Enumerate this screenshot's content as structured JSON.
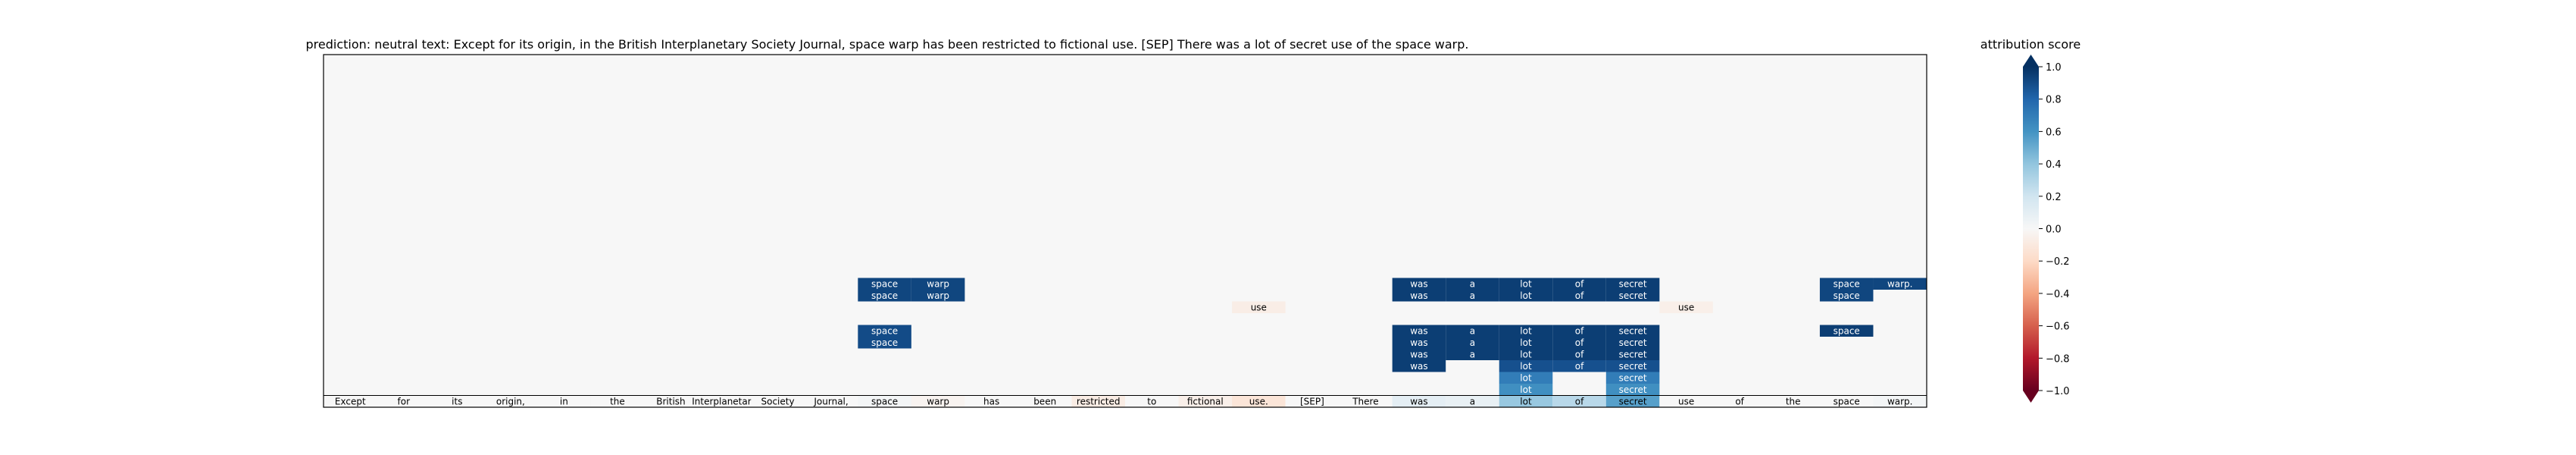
{
  "chart_data": {
    "type": "heatmap",
    "title": "prediction:  neutral     text:  Except for its origin, in the British Interplanetary Society Journal, space warp has been restricted to fictional use. [SEP] There was a lot of secret use of the space warp.",
    "tokens": [
      "Except",
      "for",
      "its",
      "origin,",
      "in",
      "the",
      "British",
      "Interplanetary",
      "Society",
      "Journal,",
      "space",
      "warp",
      "has",
      "been",
      "restricted",
      "to",
      "fictional",
      "use.",
      "[SEP]",
      "There",
      "was",
      "a",
      "lot",
      "of",
      "secret",
      "use",
      "of",
      "the",
      "space",
      "warp."
    ],
    "token_scores": [
      0.0,
      0.0,
      0.0,
      0.0,
      0.0,
      0.0,
      0.0,
      0.0,
      0.0,
      0.0,
      0.02,
      -0.03,
      0.0,
      0.0,
      -0.08,
      0.0,
      -0.06,
      -0.13,
      0.0,
      0.0,
      0.1,
      0.08,
      0.38,
      0.28,
      0.55,
      0.0,
      0.0,
      0.0,
      0.0,
      0.02
    ],
    "background_score": 0.0,
    "cells": [
      {
        "row": 1,
        "col": 22,
        "score": 0.62,
        "label": "lot"
      },
      {
        "row": 1,
        "col": 24,
        "score": 0.62,
        "label": "secret"
      },
      {
        "row": 2,
        "col": 22,
        "score": 0.7,
        "label": "lot"
      },
      {
        "row": 2,
        "col": 24,
        "score": 0.7,
        "label": "secret"
      },
      {
        "row": 3,
        "col": 20,
        "score": 0.95,
        "label": "was"
      },
      {
        "row": 3,
        "col": 22,
        "score": 0.88,
        "label": "lot"
      },
      {
        "row": 3,
        "col": 23,
        "score": 0.88,
        "label": "of"
      },
      {
        "row": 3,
        "col": 24,
        "score": 0.88,
        "label": "secret"
      },
      {
        "row": 4,
        "col": 20,
        "score": 0.95,
        "label": "was"
      },
      {
        "row": 4,
        "col": 21,
        "score": 0.95,
        "label": "a"
      },
      {
        "row": 4,
        "col": 22,
        "score": 0.95,
        "label": "lot"
      },
      {
        "row": 4,
        "col": 23,
        "score": 0.95,
        "label": "of"
      },
      {
        "row": 4,
        "col": 24,
        "score": 0.95,
        "label": "secret"
      },
      {
        "row": 5,
        "col": 10,
        "score": 0.9,
        "label": "space"
      },
      {
        "row": 5,
        "col": 20,
        "score": 0.95,
        "label": "was"
      },
      {
        "row": 5,
        "col": 21,
        "score": 0.95,
        "label": "a"
      },
      {
        "row": 5,
        "col": 22,
        "score": 0.95,
        "label": "lot"
      },
      {
        "row": 5,
        "col": 23,
        "score": 0.95,
        "label": "of"
      },
      {
        "row": 5,
        "col": 24,
        "score": 0.95,
        "label": "secret"
      },
      {
        "row": 6,
        "col": 10,
        "score": 0.9,
        "label": "space"
      },
      {
        "row": 6,
        "col": 20,
        "score": 0.95,
        "label": "was"
      },
      {
        "row": 6,
        "col": 21,
        "score": 0.95,
        "label": "a"
      },
      {
        "row": 6,
        "col": 22,
        "score": 0.95,
        "label": "lot"
      },
      {
        "row": 6,
        "col": 23,
        "score": 0.95,
        "label": "of"
      },
      {
        "row": 6,
        "col": 24,
        "score": 0.95,
        "label": "secret"
      },
      {
        "row": 6,
        "col": 28,
        "score": 0.95,
        "label": "space"
      },
      {
        "row": 8,
        "col": 17,
        "score": -0.07,
        "label": "use"
      },
      {
        "row": 8,
        "col": 25,
        "score": -0.06,
        "label": "use"
      },
      {
        "row": 9,
        "col": 10,
        "score": 0.92,
        "label": "space"
      },
      {
        "row": 9,
        "col": 11,
        "score": 0.92,
        "label": "warp"
      },
      {
        "row": 9,
        "col": 20,
        "score": 0.95,
        "label": "was"
      },
      {
        "row": 9,
        "col": 21,
        "score": 0.95,
        "label": "a"
      },
      {
        "row": 9,
        "col": 22,
        "score": 0.95,
        "label": "lot"
      },
      {
        "row": 9,
        "col": 23,
        "score": 0.95,
        "label": "of"
      },
      {
        "row": 9,
        "col": 24,
        "score": 0.95,
        "label": "secret"
      },
      {
        "row": 9,
        "col": 28,
        "score": 0.92,
        "label": "space"
      },
      {
        "row": 10,
        "col": 10,
        "score": 0.92,
        "label": "space"
      },
      {
        "row": 10,
        "col": 11,
        "score": 0.92,
        "label": "warp"
      },
      {
        "row": 10,
        "col": 20,
        "score": 0.95,
        "label": "was"
      },
      {
        "row": 10,
        "col": 21,
        "score": 0.95,
        "label": "a"
      },
      {
        "row": 10,
        "col": 22,
        "score": 0.95,
        "label": "lot"
      },
      {
        "row": 10,
        "col": 23,
        "score": 0.95,
        "label": "of"
      },
      {
        "row": 10,
        "col": 24,
        "score": 0.95,
        "label": "secret"
      },
      {
        "row": 10,
        "col": 28,
        "score": 0.92,
        "label": "space"
      },
      {
        "row": 10,
        "col": 29,
        "score": 0.92,
        "label": "warp."
      }
    ],
    "rows": 30,
    "colorbar": {
      "label": "attribution score",
      "range": [
        -1.0,
        1.0
      ],
      "ticks": [
        -1.0,
        -0.8,
        -0.6,
        -0.4,
        -0.2,
        0.0,
        0.2,
        0.4,
        0.6,
        0.8,
        1.0
      ],
      "tick_labels": [
        "−1.0",
        "−0.8",
        "−0.6",
        "−0.4",
        "−0.2",
        "0.0",
        "0.2",
        "0.4",
        "0.6",
        "0.8",
        "1.0"
      ],
      "colormap": "RdBu",
      "extend": "both"
    }
  }
}
